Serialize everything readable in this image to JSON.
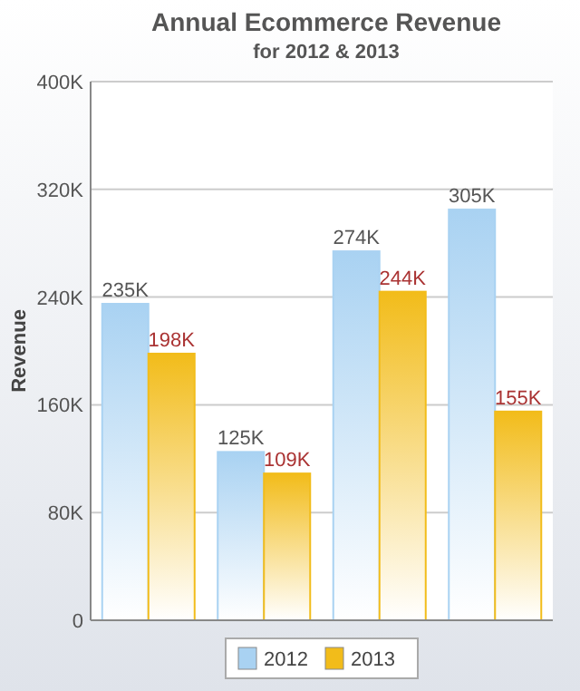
{
  "chart_data": {
    "type": "bar",
    "title": "Annual Ecommerce Revenue",
    "subtitle": "for 2012 & 2013",
    "ylabel": "Revenue",
    "categories": [
      null,
      null,
      null,
      null
    ],
    "series": [
      {
        "name": "2012",
        "color": "#a9d2f2",
        "values": [
          235000,
          125000,
          274000,
          305000
        ],
        "value_labels": [
          "235K",
          "125K",
          "274K",
          "305K"
        ]
      },
      {
        "name": "2013",
        "color": "#f2bc1a",
        "values": [
          198000,
          109000,
          244000,
          155000
        ],
        "value_labels": [
          "198K",
          "109K",
          "244K",
          "155K"
        ]
      }
    ],
    "ylim": [
      0,
      400000
    ],
    "yticks": [
      {
        "value": 0,
        "label": "0"
      },
      {
        "value": 80000,
        "label": "80K"
      },
      {
        "value": 160000,
        "label": "160K"
      },
      {
        "value": 240000,
        "label": "240K"
      },
      {
        "value": 320000,
        "label": "320K"
      },
      {
        "value": 400000,
        "label": "400K"
      }
    ],
    "grid": "y",
    "legend": "bottom"
  }
}
